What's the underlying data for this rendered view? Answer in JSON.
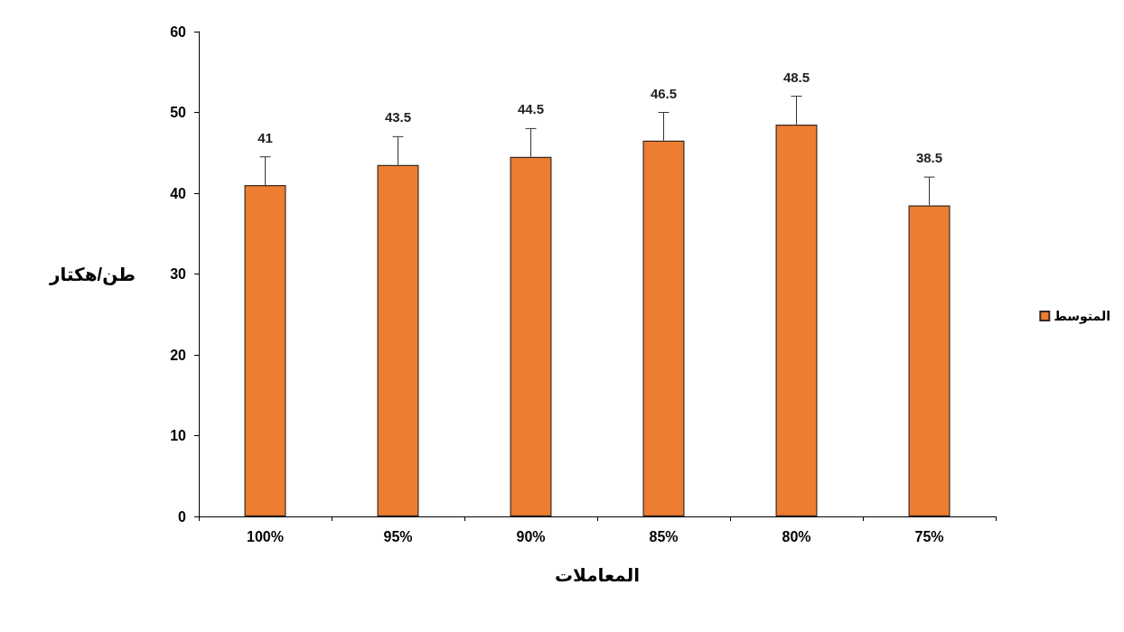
{
  "chart_data": {
    "type": "bar",
    "xlabel": "المعاملات",
    "ylabel": "طن/هكتار",
    "categories": [
      "100%",
      "95%",
      "90%",
      "85%",
      "80%",
      "75%"
    ],
    "series": [
      {
        "name": "المتوسط",
        "color": "#ed7d31",
        "values": [
          41,
          43.5,
          44.5,
          46.5,
          48.5,
          38.5
        ],
        "errors": [
          [
            41,
            44.5
          ],
          [
            43.5,
            47
          ],
          [
            44.5,
            48
          ],
          [
            46.5,
            50
          ],
          [
            48.5,
            52
          ],
          [
            38.5,
            42
          ]
        ]
      }
    ],
    "ylim": [
      0,
      60
    ],
    "yticks": [
      0,
      10,
      20,
      30,
      40,
      50,
      60
    ],
    "grid": false,
    "legend": "right",
    "data_labels": true
  }
}
